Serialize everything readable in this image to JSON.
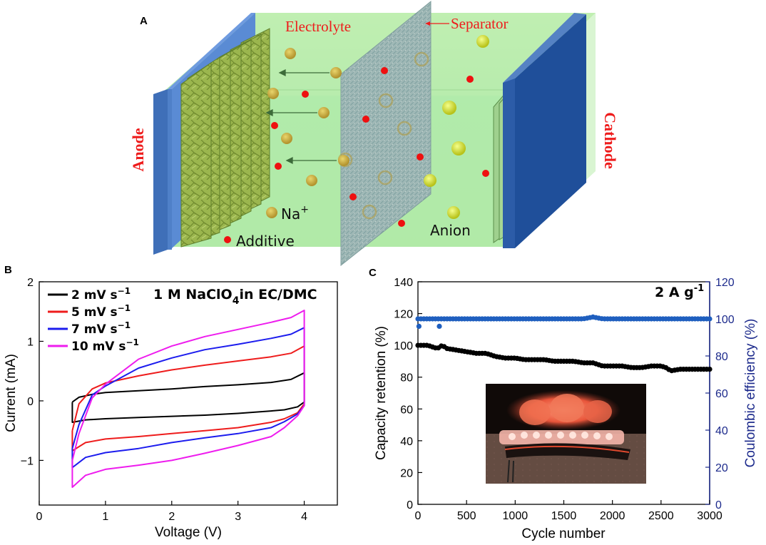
{
  "panel_a": {
    "letter": "A",
    "labels": {
      "electrolyte": "Electrolyte",
      "separator": "Separator",
      "anode": "Anode",
      "cathode": "Cathode",
      "na": "Na",
      "na_sup": "+",
      "additive": "Additive",
      "anion": "Anion"
    },
    "colors": {
      "electrolyte": "#c8f4b8",
      "plate": "#4f80c8",
      "label_red": "#ee1c1c"
    }
  },
  "chart_data": [
    {
      "panel": "B",
      "type": "line",
      "title": "1 M NaClO4 in EC/DMC",
      "title_main": "1 M NaClO",
      "title_sub": "4",
      "title_tail": "in EC/DMC",
      "xlabel": "Voltage (V)",
      "ylabel": "Current (mA)",
      "xlim": [
        0,
        4.5
      ],
      "ylim": [
        -1.75,
        2.0
      ],
      "xticks": [
        0,
        1,
        2,
        3,
        4
      ],
      "yticks": [
        -1,
        0,
        1,
        2
      ],
      "xtick_labels": [
        "0",
        "1",
        "2",
        "3",
        "4"
      ],
      "ytick_labels": [
        "−1",
        "0",
        "1",
        "2"
      ],
      "legend_position": "top-left",
      "series": [
        {
          "name": "2 mV s−1",
          "label_main": "2 mV s",
          "label_sup": "−1",
          "color": "#000000",
          "x": [
            0.5,
            0.6,
            0.8,
            1.0,
            1.5,
            2.0,
            2.5,
            3.0,
            3.5,
            3.8,
            4.0,
            4.0,
            3.9,
            3.7,
            3.5,
            3.0,
            2.5,
            2.0,
            1.5,
            1.0,
            0.7,
            0.5,
            0.5
          ],
          "y": [
            -0.02,
            0.06,
            0.11,
            0.14,
            0.17,
            0.2,
            0.24,
            0.27,
            0.31,
            0.36,
            0.47,
            -0.02,
            -0.1,
            -0.15,
            -0.17,
            -0.21,
            -0.24,
            -0.26,
            -0.28,
            -0.3,
            -0.32,
            -0.36,
            -0.02
          ]
        },
        {
          "name": "5 mV s−1",
          "label_main": "5 mV s",
          "label_sup": "−1",
          "color": "#ee1c1c",
          "x": [
            0.5,
            0.6,
            0.8,
            1.0,
            1.5,
            2.0,
            2.5,
            3.0,
            3.5,
            3.8,
            4.0,
            4.0,
            3.9,
            3.7,
            3.5,
            3.0,
            2.5,
            2.0,
            1.5,
            1.0,
            0.7,
            0.5,
            0.5
          ],
          "y": [
            -0.5,
            -0.05,
            0.2,
            0.3,
            0.42,
            0.52,
            0.6,
            0.67,
            0.74,
            0.8,
            0.92,
            -0.05,
            -0.2,
            -0.3,
            -0.36,
            -0.45,
            -0.5,
            -0.55,
            -0.6,
            -0.64,
            -0.7,
            -0.84,
            -0.5
          ]
        },
        {
          "name": "7 mV s−1",
          "label_main": "7 mV s",
          "label_sup": "−1",
          "color": "#1c1cee",
          "x": [
            0.5,
            0.6,
            0.8,
            1.0,
            1.5,
            2.0,
            2.5,
            3.0,
            3.5,
            3.8,
            4.0,
            4.0,
            3.9,
            3.7,
            3.5,
            3.0,
            2.5,
            2.0,
            1.5,
            1.0,
            0.7,
            0.5,
            0.5
          ],
          "y": [
            -0.8,
            -0.4,
            0.1,
            0.25,
            0.55,
            0.72,
            0.86,
            0.95,
            1.05,
            1.12,
            1.23,
            -0.08,
            -0.22,
            -0.35,
            -0.45,
            -0.55,
            -0.62,
            -0.7,
            -0.8,
            -0.87,
            -0.95,
            -1.12,
            -0.8
          ]
        },
        {
          "name": "10 mV s−1",
          "label_main": "10 mV s",
          "label_sup": "−1",
          "color": "#ee1cee",
          "x": [
            0.5,
            0.6,
            0.8,
            1.0,
            1.5,
            2.0,
            2.5,
            3.0,
            3.5,
            3.8,
            4.0,
            4.0,
            3.9,
            3.7,
            3.5,
            3.0,
            2.5,
            2.0,
            1.5,
            1.0,
            0.7,
            0.5,
            0.5
          ],
          "y": [
            -1.0,
            -0.55,
            0.05,
            0.28,
            0.7,
            0.92,
            1.08,
            1.2,
            1.32,
            1.4,
            1.52,
            -0.08,
            -0.25,
            -0.45,
            -0.6,
            -0.75,
            -0.88,
            -1.0,
            -1.08,
            -1.15,
            -1.25,
            -1.45,
            -1.0
          ]
        }
      ]
    },
    {
      "panel": "C",
      "type": "scatter",
      "annotation": "2 A g−1",
      "annotation_main": "2 A g",
      "annotation_sup": "-1",
      "xlabel": "Cycle number",
      "ylabel": "Capacity retention (%)",
      "ylabel_right": "Coulombic efficiency (%)",
      "xlim": [
        0,
        3000
      ],
      "ylim": [
        0,
        140
      ],
      "ylim_right": [
        0,
        120
      ],
      "xticks": [
        0,
        500,
        1000,
        1500,
        2000,
        2500,
        3000
      ],
      "yticks": [
        0,
        20,
        40,
        60,
        80,
        100,
        120,
        140
      ],
      "yticks_right": [
        0,
        20,
        40,
        60,
        80,
        100,
        120
      ],
      "has_inset_photo": true,
      "series": [
        {
          "name": "Capacity retention",
          "axis": "left",
          "color": "#000000",
          "x": [
            0,
            100,
            200,
            250,
            300,
            400,
            500,
            600,
            700,
            800,
            900,
            1000,
            1100,
            1200,
            1300,
            1400,
            1500,
            1600,
            1700,
            1800,
            1900,
            2000,
            2100,
            2200,
            2300,
            2400,
            2450,
            2500,
            2550,
            2600,
            2700,
            2800,
            2900,
            3000
          ],
          "y": [
            100,
            100,
            98,
            100,
            98,
            97,
            96,
            95,
            95,
            93,
            92,
            92,
            91,
            91,
            91,
            90,
            90,
            90,
            89,
            89,
            87,
            87,
            87,
            86,
            86,
            87,
            87,
            87,
            86,
            84,
            85,
            85,
            85,
            85
          ]
        },
        {
          "name": "Coulombic efficiency",
          "axis": "right",
          "color": "#1f5fbf",
          "x": [
            0,
            100,
            200,
            300,
            400,
            500,
            600,
            700,
            800,
            900,
            1000,
            1100,
            1200,
            1300,
            1400,
            1500,
            1600,
            1700,
            1800,
            1900,
            2000,
            2100,
            2200,
            2300,
            2400,
            2500,
            2600,
            2700,
            2800,
            2900,
            3000
          ],
          "y": [
            100,
            100,
            100,
            100,
            100,
            100,
            100,
            100,
            100,
            100,
            100,
            100,
            100,
            100,
            100,
            100,
            100,
            100,
            101,
            100,
            100,
            100,
            100,
            100,
            100,
            100,
            100,
            100,
            100,
            100,
            100
          ],
          "outliers_x": [
            10,
            220
          ],
          "outliers_y": [
            96,
            96
          ]
        }
      ]
    }
  ]
}
